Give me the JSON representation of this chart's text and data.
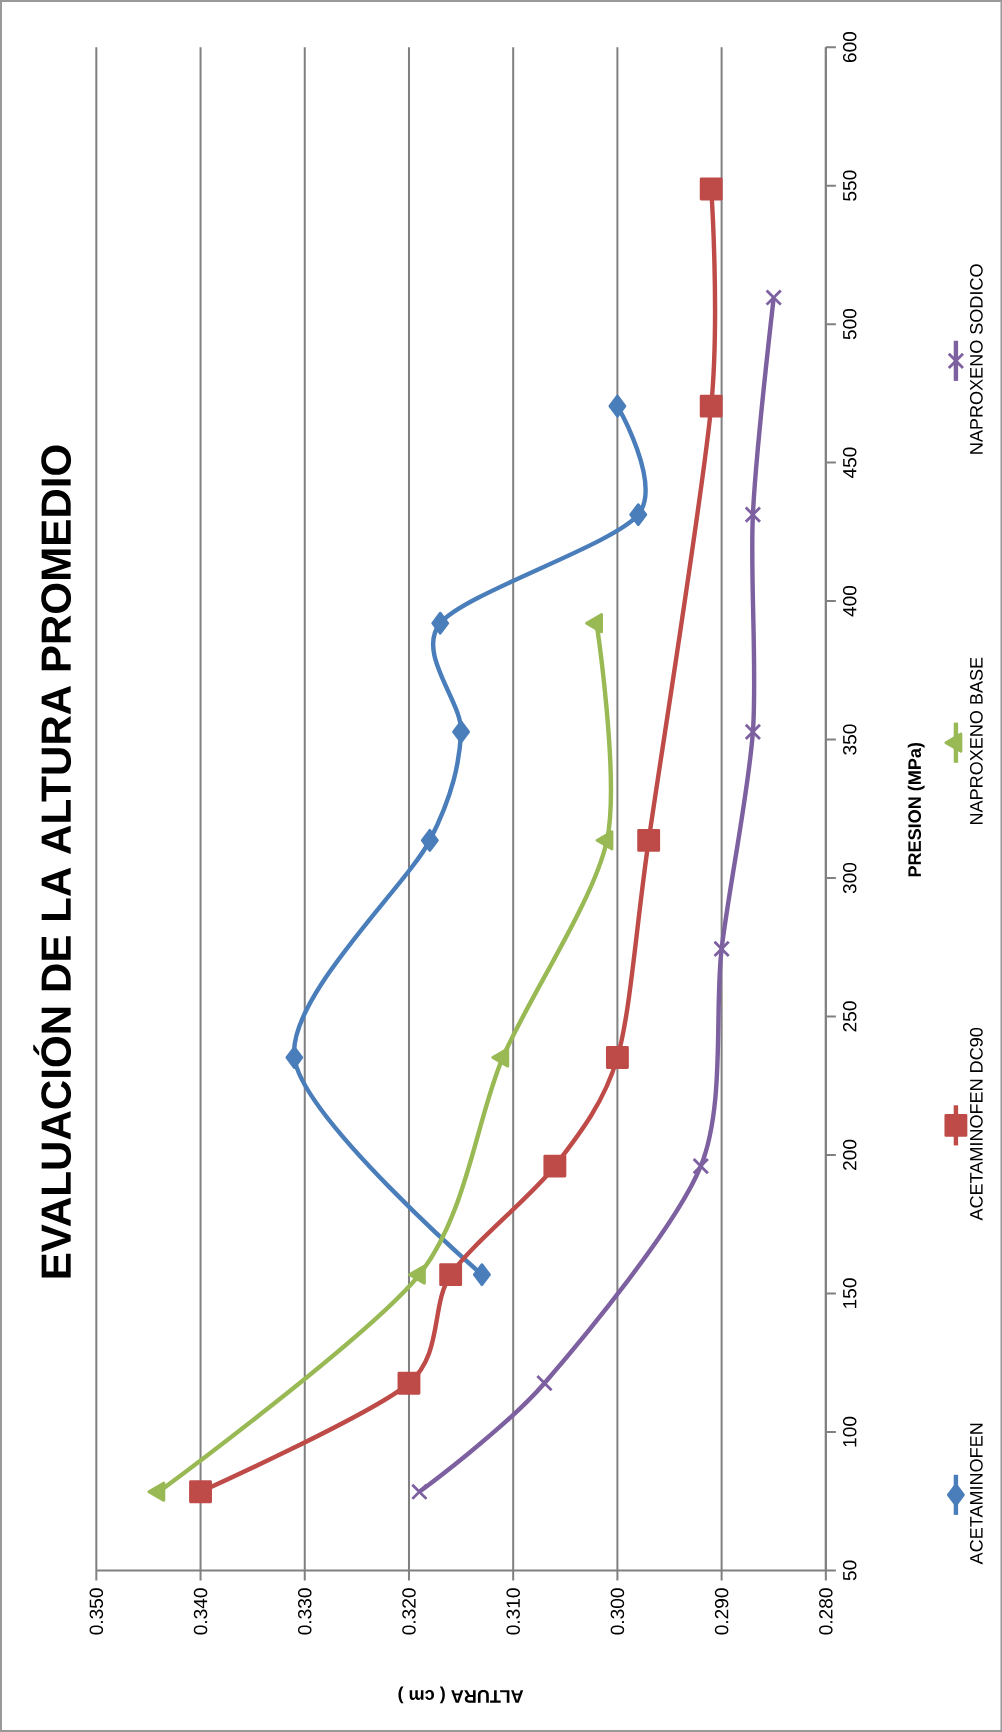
{
  "chart_data": {
    "type": "line",
    "title": "EVALUACIÓN DE LA ALTURA PROMEDIO",
    "xlabel": "ALTURA ( cm )",
    "ylabel": "PRESION   (MPa)",
    "series": [
      {
        "name": "ACETAMINOFEN",
        "color": "#4a7ebb",
        "marker": "diamond",
        "x": [
          0.313,
          0.331,
          0.318,
          0.315,
          0.317,
          0.298,
          0.3
        ],
        "values": [
          156.8,
          235.2,
          313.6,
          352.8,
          392,
          431.2,
          470.4
        ]
      },
      {
        "name": "ACETAMINOFEN DC90",
        "color": "#be4b48",
        "marker": "square",
        "x": [
          0.34,
          0.32,
          0.316,
          0.306,
          0.3,
          0.297,
          0.291,
          0.291
        ],
        "values": [
          78.4,
          117.6,
          156.8,
          196,
          235.2,
          313.6,
          470.4,
          548.8
        ]
      },
      {
        "name": "NAPROXENO BASE",
        "color": "#98b954",
        "marker": "triangle",
        "x": [
          0.344,
          0.319,
          0.311,
          0.301,
          0.302
        ],
        "values": [
          78.4,
          156.8,
          235.2,
          313.6,
          392
        ]
      },
      {
        "name": "NAPROXENO SODICO",
        "color": "#7d60a0",
        "marker": "cross",
        "x": [
          0.319,
          0.307,
          0.292,
          0.29,
          0.287,
          0.287,
          0.285
        ],
        "values": [
          78.4,
          117.6,
          196,
          274.4,
          352.8,
          431.2,
          509.6
        ]
      }
    ],
    "ylim": [
      50,
      600
    ],
    "yticks": [
      50,
      100,
      150,
      200,
      250,
      300,
      350,
      400,
      450,
      500,
      550,
      600
    ],
    "xlim": [
      0.35,
      0.28
    ],
    "xticks": [
      {
        "value": 0.35,
        "label": "0.350"
      },
      {
        "value": 0.34,
        "label": "0.340"
      },
      {
        "value": 0.33,
        "label": "0.330"
      },
      {
        "value": 0.32,
        "label": "0.320"
      },
      {
        "value": 0.31,
        "label": "0.310"
      },
      {
        "value": 0.3,
        "label": "0.300"
      },
      {
        "value": 0.29,
        "label": "0.290"
      },
      {
        "value": 0.28,
        "label": "0.280"
      }
    ],
    "grid": "x",
    "legend": "right",
    "line_style": "solid"
  }
}
